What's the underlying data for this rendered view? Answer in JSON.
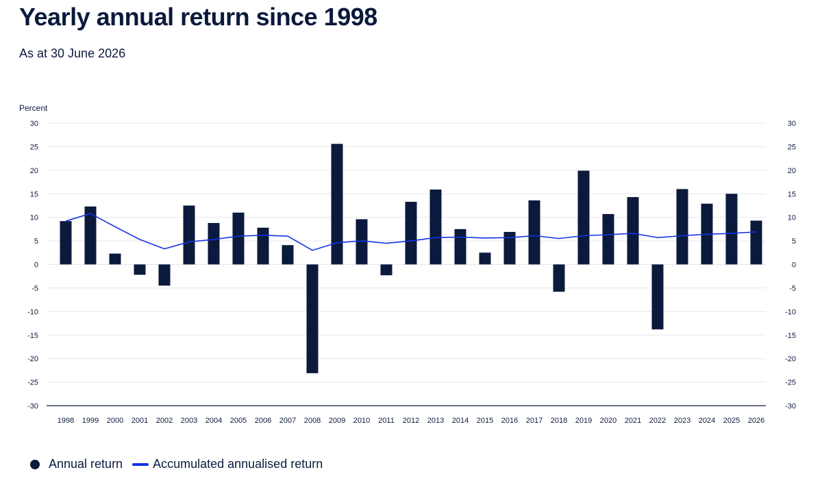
{
  "header": {
    "title": "Yearly annual return since 1998",
    "subtitle": "As at 30 June 2026"
  },
  "colors": {
    "bar": "#0b1a3c",
    "line": "#1433e6",
    "grid": "#e3e6ec",
    "axis": "#0b1a3c",
    "text": "#0b1a3c"
  },
  "chart_data": {
    "type": "bar",
    "ylabel": "Percent",
    "ylim": [
      -30,
      30
    ],
    "yticks": [
      30,
      25,
      20,
      15,
      10,
      5,
      0,
      -5,
      -10,
      -15,
      -20,
      -25,
      -30
    ],
    "grid": true,
    "legend_position": "bottom-left",
    "categories": [
      "1998",
      "1999",
      "2000",
      "2001",
      "2002",
      "2003",
      "2004",
      "2005",
      "2006",
      "2007",
      "2008",
      "2009",
      "2010",
      "2011",
      "2012",
      "2013",
      "2014",
      "2015",
      "2016",
      "2017",
      "2018",
      "2019",
      "2020",
      "2021",
      "2022",
      "2023",
      "2024",
      "2025",
      "2026"
    ],
    "series": [
      {
        "name": "Annual return",
        "type": "bar",
        "values": [
          9.2,
          12.3,
          2.3,
          -2.2,
          -4.5,
          12.5,
          8.8,
          11.0,
          7.8,
          4.1,
          -23.1,
          25.6,
          9.6,
          -2.3,
          13.3,
          15.9,
          7.5,
          2.5,
          6.9,
          13.6,
          -5.8,
          19.9,
          10.7,
          14.3,
          -13.8,
          16.0,
          12.9,
          15.0,
          9.3
        ]
      },
      {
        "name": "Accumulated annualised return",
        "type": "line",
        "values": [
          9.2,
          10.8,
          8.0,
          5.3,
          3.3,
          4.8,
          5.3,
          6.0,
          6.2,
          6.0,
          3.0,
          4.6,
          5.0,
          4.5,
          5.0,
          5.7,
          5.8,
          5.6,
          5.7,
          6.1,
          5.5,
          6.1,
          6.3,
          6.6,
          5.7,
          6.1,
          6.4,
          6.6,
          6.9
        ]
      }
    ]
  }
}
